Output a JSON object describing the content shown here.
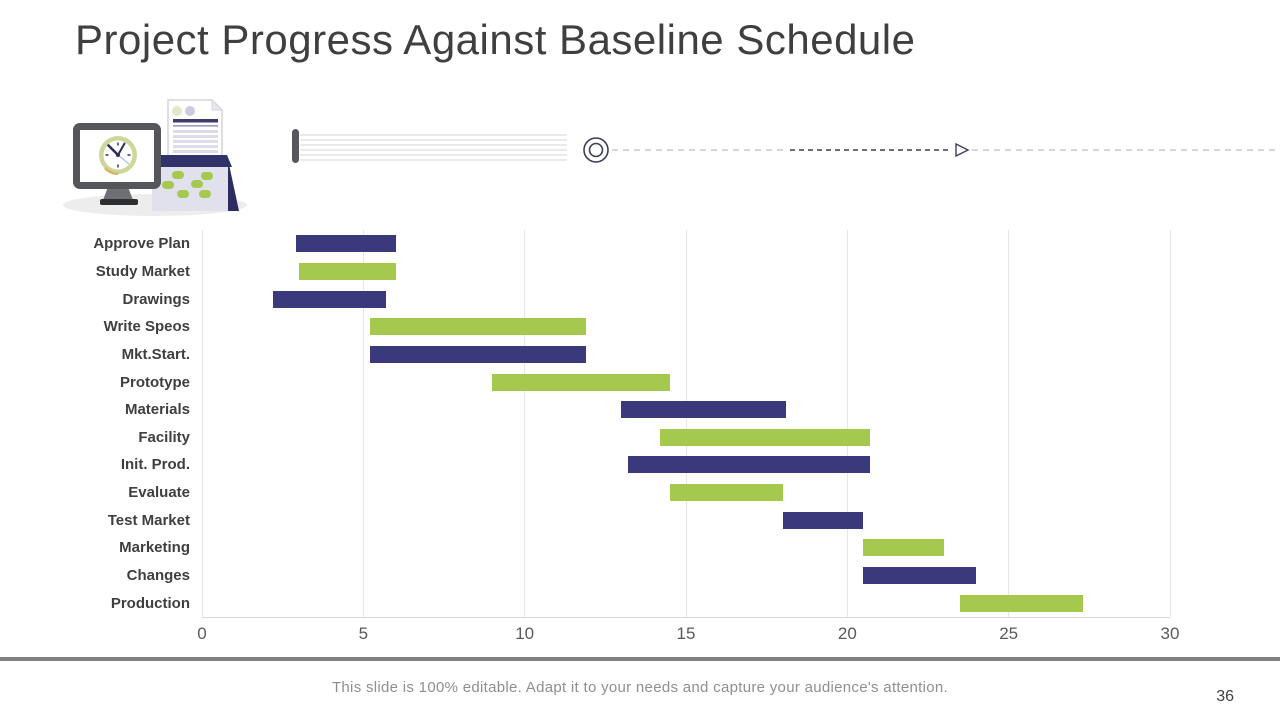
{
  "slide": {
    "title": "Project Progress Against Baseline Schedule",
    "footer_note": "This slide is 100% editable. Adapt it to your needs and capture your audience's attention.",
    "page_number": "36"
  },
  "colors": {
    "navy": "#3a397b",
    "green": "#a5c84e",
    "title_text": "#3f3f3f",
    "tick_text": "#595959",
    "gridline": "#e7e7e7",
    "axis_line": "#d9d9d9",
    "footer_rule": "#828282",
    "footer_text": "#8f8f8f"
  },
  "chart_data": {
    "type": "bar",
    "subtype": "horizontal-gantt",
    "title": "",
    "xlabel": "",
    "ylabel": "",
    "xlim": [
      0,
      30
    ],
    "x_ticks": [
      0,
      5,
      10,
      15,
      20,
      25,
      30
    ],
    "grid": "vertical",
    "legend": "none",
    "categories": [
      "Approve Plan",
      "Study Market",
      "Drawings",
      "Write Speos",
      "Mkt.Start.",
      "Prototype",
      "Materials",
      "Facility",
      "Init. Prod.",
      "Evaluate",
      "Test Market",
      "Marketing",
      "Changes",
      "Production"
    ],
    "bars": [
      {
        "task": "Approve Plan",
        "start": 2.9,
        "end": 6.0,
        "color": "navy"
      },
      {
        "task": "Study Market",
        "start": 3.0,
        "end": 6.0,
        "color": "green"
      },
      {
        "task": "Drawings",
        "start": 2.2,
        "end": 5.7,
        "color": "navy"
      },
      {
        "task": "Write Speos",
        "start": 5.2,
        "end": 11.9,
        "color": "green"
      },
      {
        "task": "Mkt.Start.",
        "start": 5.2,
        "end": 11.9,
        "color": "navy"
      },
      {
        "task": "Prototype",
        "start": 9.0,
        "end": 14.5,
        "color": "green"
      },
      {
        "task": "Materials",
        "start": 13.0,
        "end": 18.1,
        "color": "navy"
      },
      {
        "task": "Facility",
        "start": 14.2,
        "end": 20.7,
        "color": "green"
      },
      {
        "task": "Init. Prod.",
        "start": 13.2,
        "end": 20.7,
        "color": "navy"
      },
      {
        "task": "Evaluate",
        "start": 14.5,
        "end": 18.0,
        "color": "green"
      },
      {
        "task": "Test Market",
        "start": 18.0,
        "end": 20.5,
        "color": "navy"
      },
      {
        "task": "Marketing",
        "start": 20.5,
        "end": 23.0,
        "color": "green"
      },
      {
        "task": "Changes",
        "start": 20.5,
        "end": 24.0,
        "color": "navy"
      },
      {
        "task": "Production",
        "start": 23.5,
        "end": 27.3,
        "color": "green"
      }
    ]
  },
  "decor": {
    "icons": [
      "monitor-clock-icon",
      "document-icon",
      "calendar-icon",
      "timeline-ruled-lines",
      "timeline-circle-marker",
      "timeline-dashed-arrow"
    ]
  }
}
